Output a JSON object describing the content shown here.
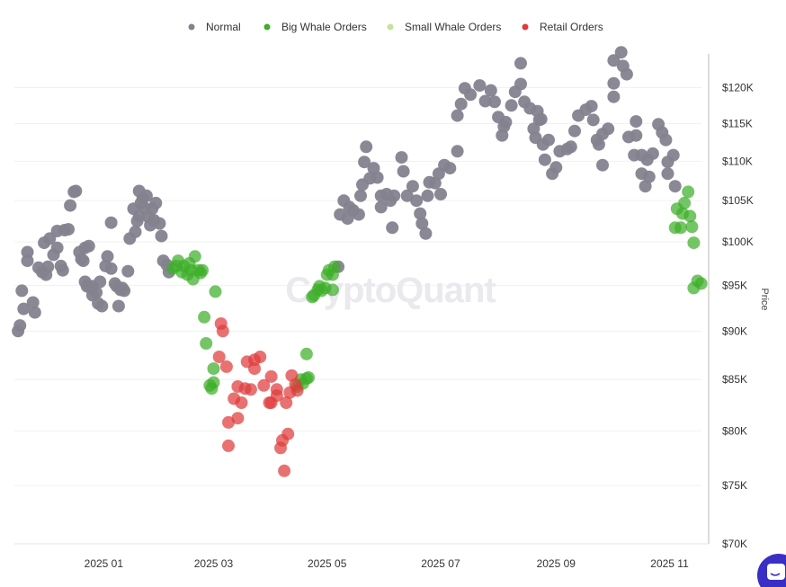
{
  "watermark": "CryptoQuant",
  "chart_data": {
    "type": "scatter",
    "title": "",
    "xlabel": "",
    "ylabel": "Price",
    "x_type": "date",
    "xlim": [
      "2024-11-14",
      "2025-11-22"
    ],
    "ylim": [
      70000,
      125000
    ],
    "y_scale": "log",
    "grid": "horizontal",
    "legend_position": "top",
    "x_ticks": [
      {
        "value": "2025-01-01",
        "label": "2025 01"
      },
      {
        "value": "2025-03-01",
        "label": "2025 03"
      },
      {
        "value": "2025-05-01",
        "label": "2025 05"
      },
      {
        "value": "2025-07-01",
        "label": "2025 07"
      },
      {
        "value": "2025-09-01",
        "label": "2025 09"
      },
      {
        "value": "2025-11-01",
        "label": "2025 11"
      }
    ],
    "y_ticks": [
      {
        "value": 70000,
        "label": "$70K"
      },
      {
        "value": 75000,
        "label": "$75K"
      },
      {
        "value": 80000,
        "label": "$80K"
      },
      {
        "value": 85000,
        "label": "$85K"
      },
      {
        "value": 90000,
        "label": "$90K"
      },
      {
        "value": 95000,
        "label": "$95K"
      },
      {
        "value": 100000,
        "label": "$100K"
      },
      {
        "value": 105000,
        "label": "$105K"
      },
      {
        "value": 110000,
        "label": "$110K"
      },
      {
        "value": 115000,
        "label": "$115K"
      },
      {
        "value": 120000,
        "label": "$120K"
      }
    ],
    "series": [
      {
        "name": "Normal",
        "color": "#85828f",
        "points": [
          [
            "2024-11-16",
            90000
          ],
          [
            "2024-11-17",
            90600
          ],
          [
            "2024-11-19",
            92400
          ],
          [
            "2024-11-18",
            94400
          ],
          [
            "2024-11-21",
            97800
          ],
          [
            "2024-11-21",
            98800
          ],
          [
            "2024-11-24",
            93100
          ],
          [
            "2024-11-25",
            92000
          ],
          [
            "2024-11-27",
            97000
          ],
          [
            "2024-11-29",
            96500
          ],
          [
            "2024-12-01",
            96200
          ],
          [
            "2024-12-02",
            97100
          ],
          [
            "2024-11-30",
            99900
          ],
          [
            "2024-12-03",
            100400
          ],
          [
            "2024-12-05",
            98500
          ],
          [
            "2024-12-07",
            101300
          ],
          [
            "2024-12-07",
            99300
          ],
          [
            "2024-12-09",
            97200
          ],
          [
            "2024-12-10",
            96700
          ],
          [
            "2024-12-11",
            101400
          ],
          [
            "2024-12-13",
            101500
          ],
          [
            "2024-12-14",
            104400
          ],
          [
            "2024-12-16",
            106100
          ],
          [
            "2024-12-17",
            106200
          ],
          [
            "2024-12-19",
            98800
          ],
          [
            "2024-12-20",
            98000
          ],
          [
            "2024-12-21",
            97800
          ],
          [
            "2024-12-22",
            95400
          ],
          [
            "2024-12-23",
            94900
          ],
          [
            "2024-12-25",
            94700
          ],
          [
            "2024-12-26",
            94900
          ],
          [
            "2024-12-22",
            99300
          ],
          [
            "2024-12-24",
            99500
          ],
          [
            "2024-12-26",
            93900
          ],
          [
            "2024-12-28",
            94200
          ],
          [
            "2024-12-29",
            93000
          ],
          [
            "2024-12-30",
            95400
          ],
          [
            "2024-12-31",
            92700
          ],
          [
            "2025-01-02",
            97200
          ],
          [
            "2025-01-03",
            98300
          ],
          [
            "2025-01-05",
            96900
          ],
          [
            "2025-01-05",
            102300
          ],
          [
            "2025-01-07",
            95200
          ],
          [
            "2025-01-08",
            94900
          ],
          [
            "2025-01-09",
            92700
          ],
          [
            "2025-01-10",
            94500
          ],
          [
            "2025-01-11",
            94700
          ],
          [
            "2025-01-12",
            94400
          ],
          [
            "2025-01-14",
            96600
          ],
          [
            "2025-01-15",
            100400
          ],
          [
            "2025-01-17",
            104000
          ],
          [
            "2025-01-18",
            101200
          ],
          [
            "2025-01-19",
            102500
          ],
          [
            "2025-01-20",
            106200
          ],
          [
            "2025-01-21",
            104700
          ],
          [
            "2025-01-23",
            104100
          ],
          [
            "2025-01-25",
            103000
          ],
          [
            "2025-01-26",
            102000
          ],
          [
            "2025-01-27",
            104000
          ],
          [
            "2025-01-28",
            102600
          ],
          [
            "2025-01-29",
            104700
          ],
          [
            "2025-01-31",
            102200
          ],
          [
            "2025-02-01",
            100700
          ],
          [
            "2025-02-02",
            97800
          ],
          [
            "2025-02-04",
            97300
          ],
          [
            "2025-02-05",
            96500
          ],
          [
            "2025-01-24",
            105600
          ],
          [
            "2025-01-22",
            105300
          ],
          [
            "2025-01-20",
            103100
          ],
          [
            "2025-05-07",
            97100
          ],
          [
            "2025-05-08",
            103300
          ],
          [
            "2025-05-10",
            105000
          ],
          [
            "2025-05-13",
            104200
          ],
          [
            "2025-05-15",
            103800
          ],
          [
            "2025-05-18",
            103300
          ],
          [
            "2025-05-12",
            102800
          ],
          [
            "2025-05-19",
            105600
          ],
          [
            "2025-05-20",
            107000
          ],
          [
            "2025-05-24",
            107800
          ],
          [
            "2025-05-26",
            109100
          ],
          [
            "2025-05-21",
            109900
          ],
          [
            "2025-05-22",
            111900
          ],
          [
            "2025-05-28",
            107900
          ],
          [
            "2025-05-30",
            105600
          ],
          [
            "2025-05-30",
            104200
          ],
          [
            "2025-06-02",
            105800
          ],
          [
            "2025-06-04",
            105000
          ],
          [
            "2025-06-06",
            105600
          ],
          [
            "2025-06-05",
            101700
          ],
          [
            "2025-06-10",
            110500
          ],
          [
            "2025-06-11",
            108700
          ],
          [
            "2025-06-13",
            105600
          ],
          [
            "2025-06-16",
            106800
          ],
          [
            "2025-06-18",
            105000
          ],
          [
            "2025-06-20",
            103400
          ],
          [
            "2025-06-21",
            102200
          ],
          [
            "2025-06-23",
            101000
          ],
          [
            "2025-06-24",
            105600
          ],
          [
            "2025-06-25",
            107300
          ],
          [
            "2025-06-28",
            107200
          ],
          [
            "2025-07-01",
            105800
          ],
          [
            "2025-06-30",
            108400
          ],
          [
            "2025-07-03",
            109500
          ],
          [
            "2025-07-06",
            109100
          ],
          [
            "2025-07-10",
            111300
          ],
          [
            "2025-07-10",
            116100
          ],
          [
            "2025-07-12",
            117700
          ],
          [
            "2025-07-14",
            119900
          ],
          [
            "2025-07-17",
            119000
          ],
          [
            "2025-07-22",
            120300
          ],
          [
            "2025-07-25",
            118100
          ],
          [
            "2025-07-28",
            119600
          ],
          [
            "2025-07-30",
            118000
          ],
          [
            "2025-08-01",
            115900
          ],
          [
            "2025-08-04",
            114600
          ],
          [
            "2025-08-03",
            113400
          ],
          [
            "2025-08-05",
            115200
          ],
          [
            "2025-08-08",
            117500
          ],
          [
            "2025-08-10",
            119400
          ],
          [
            "2025-08-13",
            120500
          ],
          [
            "2025-08-13",
            123500
          ],
          [
            "2025-08-15",
            118000
          ],
          [
            "2025-08-18",
            117100
          ],
          [
            "2025-08-22",
            116700
          ],
          [
            "2025-08-23",
            115500
          ],
          [
            "2025-08-20",
            114300
          ],
          [
            "2025-08-21",
            113100
          ],
          [
            "2025-08-25",
            112200
          ],
          [
            "2025-08-26",
            110200
          ],
          [
            "2025-08-24",
            115600
          ],
          [
            "2025-08-28",
            112800
          ],
          [
            "2025-08-30",
            108400
          ],
          [
            "2025-09-01",
            109200
          ],
          [
            "2025-09-03",
            111300
          ],
          [
            "2025-09-07",
            111600
          ],
          [
            "2025-09-09",
            111900
          ],
          [
            "2025-09-11",
            114000
          ],
          [
            "2025-09-13",
            116100
          ],
          [
            "2025-09-17",
            116900
          ],
          [
            "2025-09-20",
            117400
          ],
          [
            "2025-09-21",
            115500
          ],
          [
            "2025-09-23",
            112800
          ],
          [
            "2025-09-26",
            113600
          ],
          [
            "2025-09-29",
            114300
          ],
          [
            "2025-09-26",
            109500
          ],
          [
            "2025-09-24",
            112200
          ],
          [
            "2025-10-02",
            123900
          ],
          [
            "2025-10-06",
            125100
          ],
          [
            "2025-10-07",
            123100
          ],
          [
            "2025-10-09",
            121900
          ],
          [
            "2025-10-02",
            120600
          ],
          [
            "2025-10-02",
            118700
          ],
          [
            "2025-10-14",
            115300
          ],
          [
            "2025-10-10",
            113200
          ],
          [
            "2025-10-14",
            113400
          ],
          [
            "2025-10-13",
            110800
          ],
          [
            "2025-10-17",
            110800
          ],
          [
            "2025-10-20",
            110200
          ],
          [
            "2025-10-23",
            111000
          ],
          [
            "2025-10-26",
            114900
          ],
          [
            "2025-10-28",
            113800
          ],
          [
            "2025-10-30",
            112800
          ],
          [
            "2025-10-17",
            108400
          ],
          [
            "2025-10-19",
            106800
          ],
          [
            "2025-10-21",
            108000
          ],
          [
            "2025-10-31",
            109900
          ],
          [
            "2025-11-03",
            110800
          ],
          [
            "2025-10-31",
            108400
          ],
          [
            "2025-11-04",
            106800
          ]
        ]
      },
      {
        "name": "Big Whale Orders",
        "color": "#3fae2a",
        "points": [
          [
            "2025-02-07",
            96900
          ],
          [
            "2025-02-09",
            97200
          ],
          [
            "2025-02-10",
            97800
          ],
          [
            "2025-02-12",
            96500
          ],
          [
            "2025-02-13",
            97200
          ],
          [
            "2025-02-15",
            96200
          ],
          [
            "2025-02-16",
            97500
          ],
          [
            "2025-02-17",
            96700
          ],
          [
            "2025-02-18",
            95700
          ],
          [
            "2025-02-19",
            98300
          ],
          [
            "2025-02-21",
            96700
          ],
          [
            "2025-02-22",
            96400
          ],
          [
            "2025-02-23",
            96700
          ],
          [
            "2025-03-02",
            94300
          ],
          [
            "2025-02-24",
            91500
          ],
          [
            "2025-02-25",
            88700
          ],
          [
            "2025-02-27",
            84400
          ],
          [
            "2025-02-28",
            84100
          ],
          [
            "2025-03-01",
            86100
          ],
          [
            "2025-03-01",
            84700
          ],
          [
            "2025-04-20",
            87600
          ],
          [
            "2025-04-17",
            85000
          ],
          [
            "2025-04-18",
            84600
          ],
          [
            "2025-04-15",
            84300
          ],
          [
            "2025-04-20",
            85100
          ],
          [
            "2025-04-21",
            85200
          ],
          [
            "2025-04-23",
            93700
          ],
          [
            "2025-04-24",
            93900
          ],
          [
            "2025-04-26",
            94500
          ],
          [
            "2025-04-27",
            94900
          ],
          [
            "2025-04-28",
            94400
          ],
          [
            "2025-04-30",
            94700
          ],
          [
            "2025-05-01",
            96200
          ],
          [
            "2025-05-02",
            96700
          ],
          [
            "2025-05-04",
            94500
          ],
          [
            "2025-05-05",
            97100
          ],
          [
            "2025-05-04",
            96200
          ],
          [
            "2025-11-11",
            106100
          ],
          [
            "2025-11-09",
            104700
          ],
          [
            "2025-11-05",
            104000
          ],
          [
            "2025-11-08",
            103400
          ],
          [
            "2025-11-12",
            103100
          ],
          [
            "2025-11-04",
            101700
          ],
          [
            "2025-11-07",
            101700
          ],
          [
            "2025-11-13",
            101800
          ],
          [
            "2025-11-14",
            99900
          ],
          [
            "2025-11-16",
            95500
          ],
          [
            "2025-11-14",
            94700
          ],
          [
            "2025-11-18",
            95200
          ]
        ]
      },
      {
        "name": "Small Whale Orders",
        "color": "#c5e3a0",
        "points": []
      },
      {
        "name": "Retail Orders",
        "color": "#df3b3b",
        "points": [
          [
            "2025-03-05",
            90800
          ],
          [
            "2025-03-06",
            90000
          ],
          [
            "2025-03-04",
            87300
          ],
          [
            "2025-03-08",
            86300
          ],
          [
            "2025-03-23",
            87000
          ],
          [
            "2025-03-26",
            87300
          ],
          [
            "2025-03-19",
            86800
          ],
          [
            "2025-03-23",
            86100
          ],
          [
            "2025-04-01",
            85300
          ],
          [
            "2025-04-12",
            85400
          ],
          [
            "2025-03-14",
            84300
          ],
          [
            "2025-03-18",
            84100
          ],
          [
            "2025-03-21",
            84000
          ],
          [
            "2025-03-28",
            84400
          ],
          [
            "2025-04-04",
            84000
          ],
          [
            "2025-03-12",
            83100
          ],
          [
            "2025-03-16",
            82700
          ],
          [
            "2025-03-31",
            82700
          ],
          [
            "2025-04-04",
            83400
          ],
          [
            "2025-04-11",
            83700
          ],
          [
            "2025-04-15",
            83900
          ],
          [
            "2025-04-09",
            82700
          ],
          [
            "2025-04-14",
            84500
          ],
          [
            "2025-03-14",
            81200
          ],
          [
            "2025-03-09",
            80800
          ],
          [
            "2025-03-09",
            78600
          ],
          [
            "2025-04-10",
            79700
          ],
          [
            "2025-04-07",
            79100
          ],
          [
            "2025-04-06",
            78400
          ],
          [
            "2025-04-08",
            76300
          ],
          [
            "2025-04-01",
            82700
          ]
        ]
      }
    ]
  },
  "chat_widget": {
    "icon": "chat-bubble-icon",
    "color": "#3a2fc4"
  }
}
